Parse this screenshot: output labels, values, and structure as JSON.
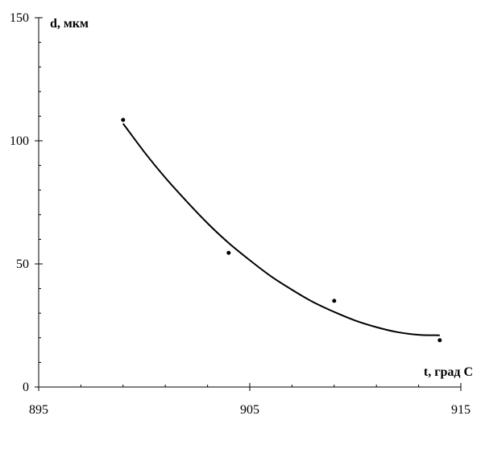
{
  "chart_data": {
    "type": "scatter",
    "title": "",
    "xlabel": "t, град С",
    "ylabel": "d, мкм",
    "xlim": [
      895,
      915
    ],
    "ylim": [
      0,
      150
    ],
    "x_major_ticks": [
      895,
      905,
      915
    ],
    "x_minor_ticks": [
      897,
      899,
      901,
      903,
      907,
      909,
      911,
      913
    ],
    "y_major_ticks": [
      0,
      50,
      100,
      150
    ],
    "y_minor_ticks": [
      10,
      20,
      30,
      40,
      60,
      70,
      80,
      90,
      110,
      120,
      130,
      140
    ],
    "grid": false,
    "series": [
      {
        "kind": "points",
        "x": [
          899,
          904,
          909,
          914
        ],
        "y": [
          108.5,
          54.5,
          35,
          19
        ]
      },
      {
        "kind": "trendline",
        "x": [
          899,
          900,
          901,
          902,
          903,
          904,
          905,
          906,
          907,
          908,
          909,
          910,
          911,
          912,
          913,
          914
        ],
        "y": [
          107,
          95.5,
          85,
          75.5,
          66.5,
          58.5,
          51.5,
          45,
          39.5,
          34.5,
          30.5,
          27,
          24.3,
          22.3,
          21.2,
          21
        ]
      }
    ]
  }
}
